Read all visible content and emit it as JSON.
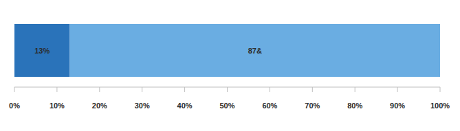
{
  "chart_data": {
    "type": "bar",
    "orientation": "horizontal",
    "stacked": true,
    "data_labels": true,
    "grid": false,
    "tick_labels": "x",
    "categories": [
      null
    ],
    "series": [
      {
        "color": "#2a73ba",
        "values": [
          13
        ],
        "value_labels": [
          "13%"
        ]
      },
      {
        "color": "#6aade2",
        "values": [
          87
        ],
        "value_labels": [
          "87&"
        ]
      }
    ],
    "xlim": [
      0,
      100
    ],
    "xticks": [
      {
        "value": 0,
        "label": "0%"
      },
      {
        "value": 10,
        "label": "10%"
      },
      {
        "value": 20,
        "label": "20%"
      },
      {
        "value": 30,
        "label": "30%"
      },
      {
        "value": 40,
        "label": "40%"
      },
      {
        "value": 50,
        "label": "50%"
      },
      {
        "value": 60,
        "label": "60%"
      },
      {
        "value": 70,
        "label": "70%"
      },
      {
        "value": 80,
        "label": "80%"
      },
      {
        "value": 90,
        "label": "90%"
      },
      {
        "value": 100,
        "label": "100%"
      }
    ]
  }
}
